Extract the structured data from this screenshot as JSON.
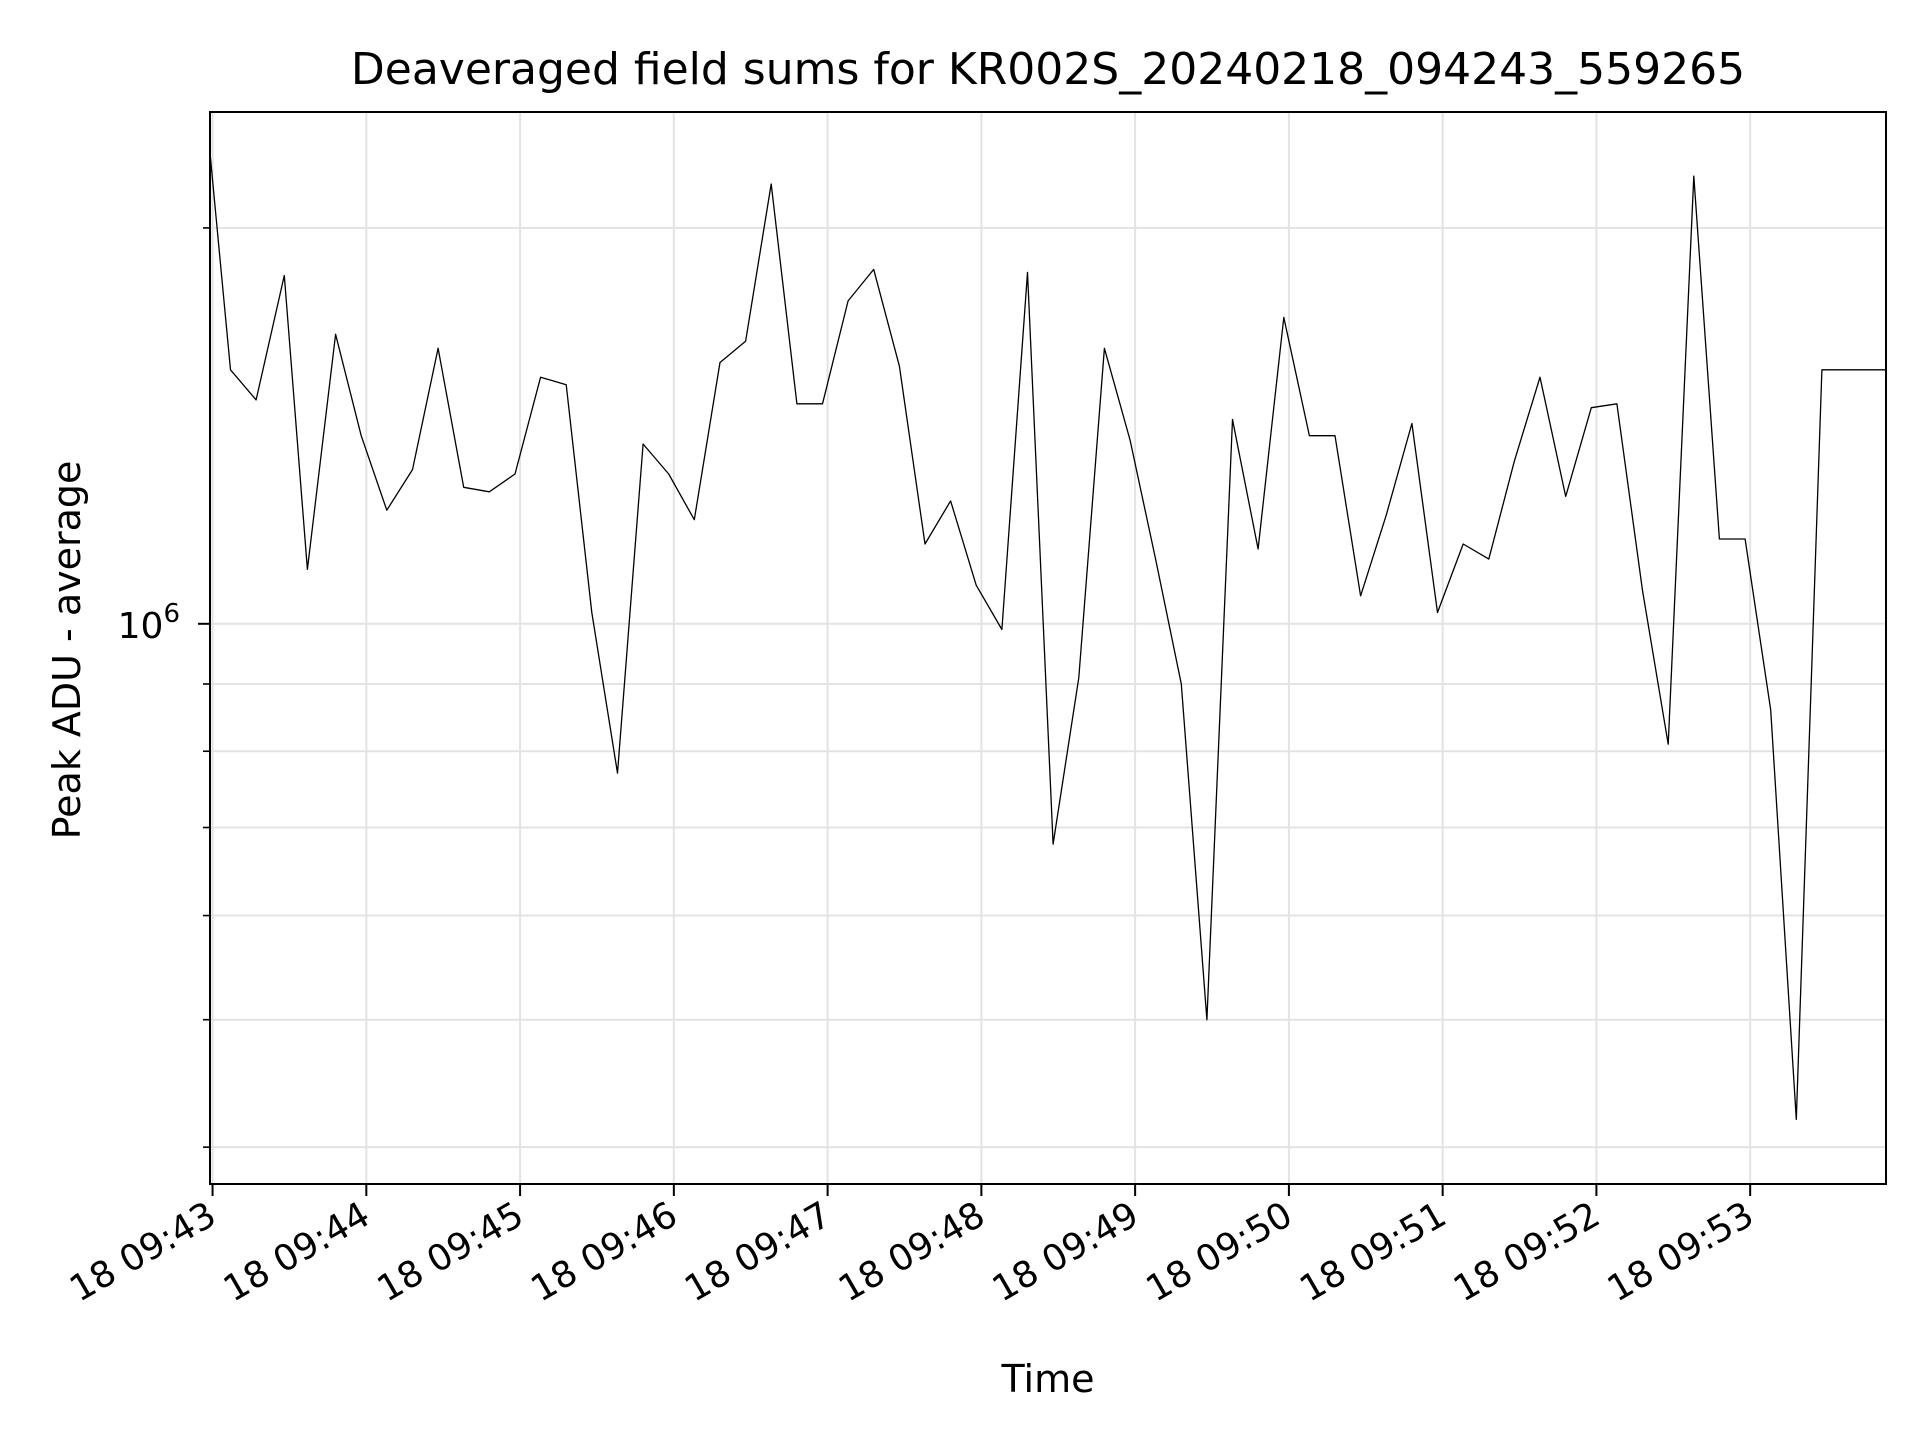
{
  "chart_data": {
    "type": "line",
    "title": "Deaveraged field sums for KR002S_20240218_094243_559265",
    "xlabel": "Time",
    "ylabel": "Peak ADU - average",
    "yscale": "log",
    "grid": true,
    "line_color": "#000000",
    "x_ticks": [
      "18 09:43",
      "18 09:44",
      "18 09:45",
      "18 09:46",
      "18 09:47",
      "18 09:48",
      "18 09:49",
      "18 09:50",
      "18 09:51",
      "18 09:52",
      "18 09:53"
    ],
    "y_major_tick": {
      "value": 1000000,
      "base": "10",
      "exp": "6"
    },
    "y_minor_ticks": [
      400000,
      500000,
      600000,
      700000,
      800000,
      900000,
      2000000
    ],
    "xlim": [
      "2024-02-18T09:42:59",
      "2024-02-18T09:53:53"
    ],
    "ylim": [
      375000,
      2450000
    ],
    "series": [
      {
        "x": [
          "2024-02-18T09:42:59",
          "2024-02-18T09:43:07",
          "2024-02-18T09:43:17",
          "2024-02-18T09:43:28",
          "2024-02-18T09:43:37",
          "2024-02-18T09:43:48",
          "2024-02-18T09:43:58",
          "2024-02-18T09:44:08",
          "2024-02-18T09:44:18",
          "2024-02-18T09:44:28",
          "2024-02-18T09:44:38",
          "2024-02-18T09:44:48",
          "2024-02-18T09:44:58",
          "2024-02-18T09:45:08",
          "2024-02-18T09:45:18",
          "2024-02-18T09:45:28",
          "2024-02-18T09:45:38",
          "2024-02-18T09:45:48",
          "2024-02-18T09:45:58",
          "2024-02-18T09:46:08",
          "2024-02-18T09:46:18",
          "2024-02-18T09:46:28",
          "2024-02-18T09:46:38",
          "2024-02-18T09:46:48",
          "2024-02-18T09:46:58",
          "2024-02-18T09:47:08",
          "2024-02-18T09:47:18",
          "2024-02-18T09:47:28",
          "2024-02-18T09:47:38",
          "2024-02-18T09:47:48",
          "2024-02-18T09:47:58",
          "2024-02-18T09:48:08",
          "2024-02-18T09:48:18",
          "2024-02-18T09:48:28",
          "2024-02-18T09:48:38",
          "2024-02-18T09:48:48",
          "2024-02-18T09:48:58",
          "2024-02-18T09:49:08",
          "2024-02-18T09:49:18",
          "2024-02-18T09:49:28",
          "2024-02-18T09:49:38",
          "2024-02-18T09:49:48",
          "2024-02-18T09:49:58",
          "2024-02-18T09:50:08",
          "2024-02-18T09:50:18",
          "2024-02-18T09:50:28",
          "2024-02-18T09:50:38",
          "2024-02-18T09:50:48",
          "2024-02-18T09:50:58",
          "2024-02-18T09:51:08",
          "2024-02-18T09:51:18",
          "2024-02-18T09:51:28",
          "2024-02-18T09:51:38",
          "2024-02-18T09:51:48",
          "2024-02-18T09:51:58",
          "2024-02-18T09:52:08",
          "2024-02-18T09:52:18",
          "2024-02-18T09:52:28",
          "2024-02-18T09:52:38",
          "2024-02-18T09:52:48",
          "2024-02-18T09:52:58",
          "2024-02-18T09:53:08",
          "2024-02-18T09:53:18",
          "2024-02-18T09:53:28",
          "2024-02-18T09:53:38",
          "2024-02-18T09:53:48",
          "2024-02-18T09:53:53"
        ],
        "values": [
          2280000,
          1560000,
          1480000,
          1840000,
          1100000,
          1660000,
          1390000,
          1220000,
          1310000,
          1620000,
          1270000,
          1260000,
          1300000,
          1540000,
          1520000,
          1020000,
          770000,
          1370000,
          1300000,
          1200000,
          1580000,
          1640000,
          2160000,
          1470000,
          1470000,
          1760000,
          1860000,
          1570000,
          1150000,
          1240000,
          1070000,
          990000,
          1850000,
          680000,
          910000,
          1620000,
          1380000,
          1120000,
          900000,
          500000,
          1430000,
          1140000,
          1710000,
          1390000,
          1390000,
          1050000,
          1210000,
          1420000,
          1020000,
          1150000,
          1120000,
          1330000,
          1540000,
          1250000,
          1460000,
          1470000,
          1060000,
          810000,
          2190000,
          1160000,
          1160000,
          860000,
          420000,
          1560000,
          1560000,
          1560000,
          1560000
        ]
      }
    ]
  }
}
